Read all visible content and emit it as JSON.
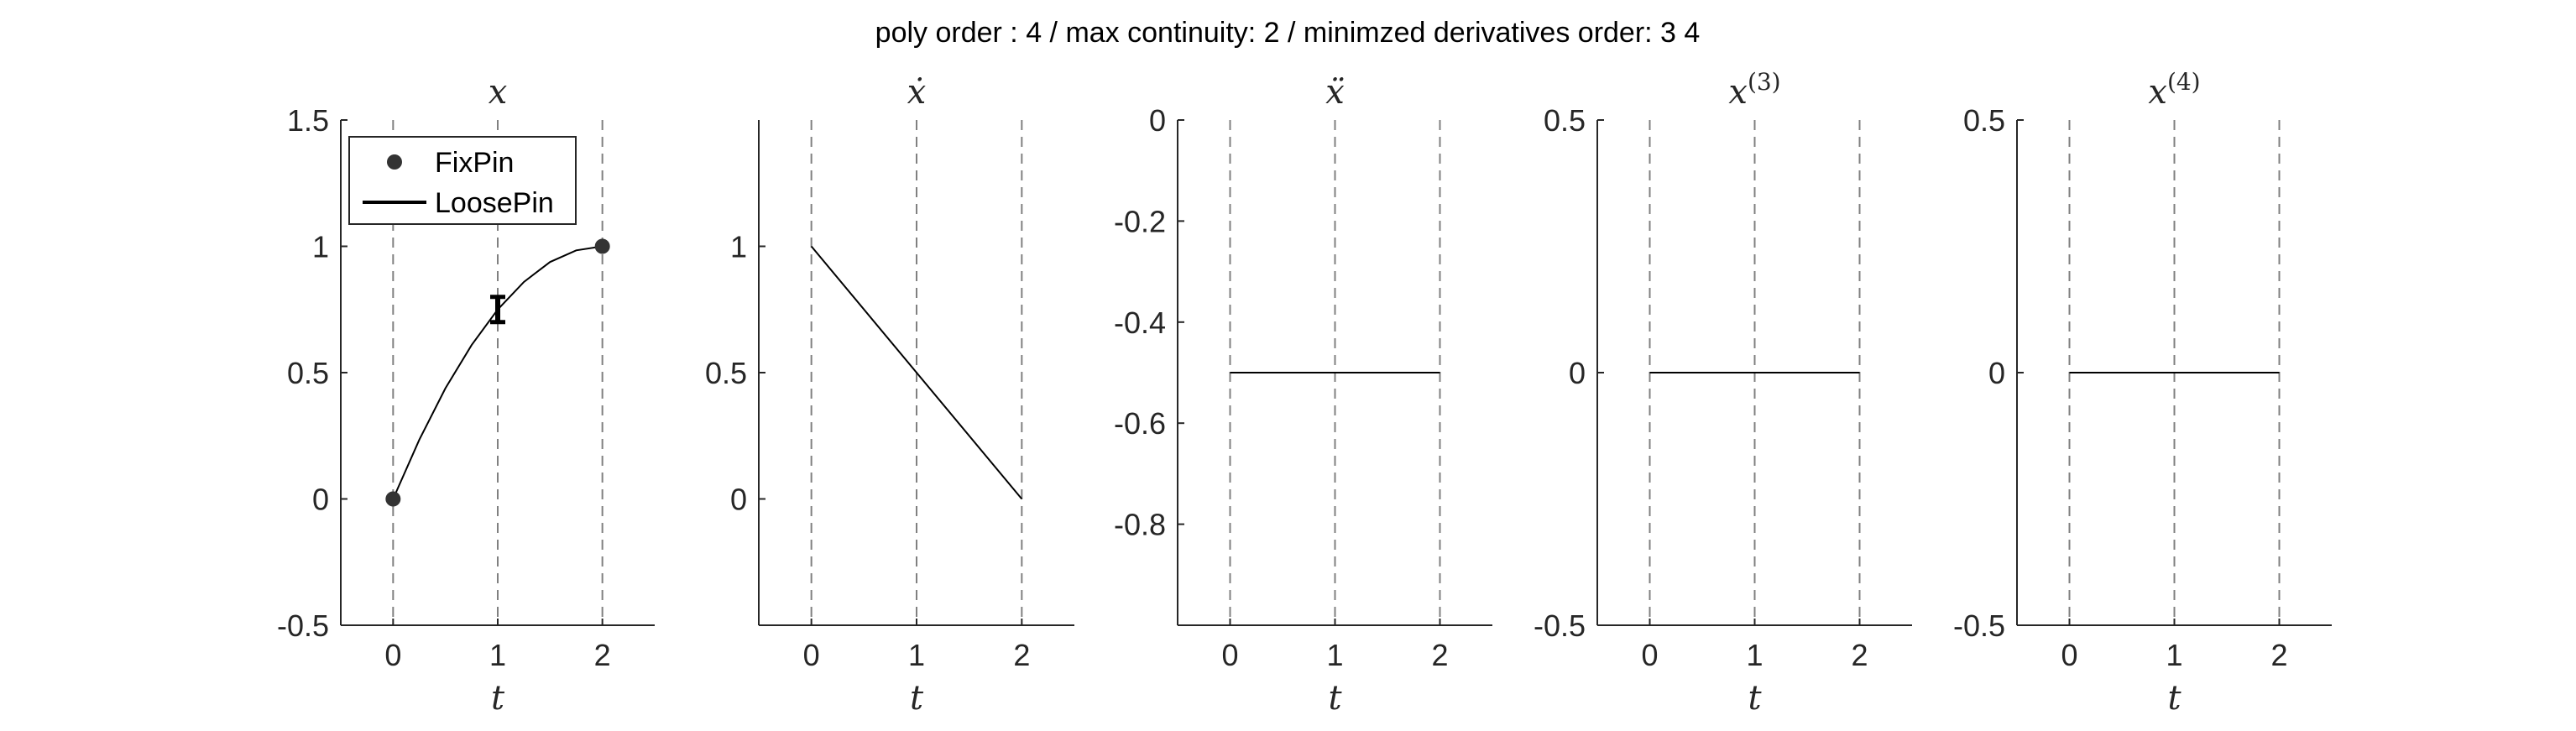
{
  "figure_title": "poly order : 4 / max continuity: 2 / minimzed derivatives order: 3  4",
  "colors": {
    "axis": "#262626",
    "curve": "#000000",
    "guide": "#808080",
    "marker": "#333333"
  },
  "chart_data": [
    {
      "type": "line",
      "title": "x",
      "xlabel": "t",
      "xlim": [
        -0.5,
        2.5
      ],
      "ylim": [
        -0.5,
        1.5
      ],
      "xticks": [
        0,
        1,
        2
      ],
      "xtick_labels": [
        "0",
        "1",
        "2"
      ],
      "yticks": [
        -0.5,
        0,
        0.5,
        1,
        1.5
      ],
      "ytick_labels": [
        "-0.5",
        "0",
        "0.5",
        "1",
        "1.5"
      ],
      "guide_lines_x": [
        0,
        1,
        2
      ],
      "series": [
        {
          "kind": "curve",
          "x": [
            0,
            0.25,
            0.5,
            0.75,
            1,
            1.25,
            1.5,
            1.75,
            2
          ],
          "y": [
            0,
            0.234,
            0.438,
            0.609,
            0.75,
            0.859,
            0.938,
            0.984,
            1
          ]
        }
      ],
      "fix_pins": {
        "x": [
          0,
          2
        ],
        "y": [
          0,
          1
        ]
      },
      "loose_pins": [
        {
          "x": 1,
          "y_low": 0.7,
          "y_high": 0.8
        }
      ],
      "legend": {
        "location": "top-left",
        "entries": [
          "FixPin",
          "LoosePin"
        ]
      }
    },
    {
      "type": "line",
      "title": "ẋ",
      "xlabel": "t",
      "xlim": [
        -0.5,
        2.5
      ],
      "ylim": [
        -0.5,
        1.5
      ],
      "xticks": [
        0,
        1,
        2
      ],
      "xtick_labels": [
        "0",
        "1",
        "2"
      ],
      "yticks": [
        0,
        0.5,
        1
      ],
      "ytick_labels": [
        "0",
        "0.5",
        "1"
      ],
      "guide_lines_x": [
        0,
        1,
        2
      ],
      "series": [
        {
          "kind": "curve",
          "x": [
            0,
            2
          ],
          "y": [
            1,
            0
          ]
        }
      ]
    },
    {
      "type": "line",
      "title": "ẍ",
      "xlabel": "t",
      "xlim": [
        -0.5,
        2.5
      ],
      "ylim": [
        -1,
        0
      ],
      "xticks": [
        0,
        1,
        2
      ],
      "xtick_labels": [
        "0",
        "1",
        "2"
      ],
      "yticks": [
        -0.8,
        -0.6,
        -0.4,
        -0.2,
        0
      ],
      "ytick_labels": [
        "-0.8",
        "-0.6",
        "-0.4",
        "-0.2",
        "0"
      ],
      "guide_lines_x": [
        0,
        1,
        2
      ],
      "series": [
        {
          "kind": "curve",
          "x": [
            0,
            2
          ],
          "y": [
            -0.5,
            -0.5
          ]
        }
      ]
    },
    {
      "type": "line",
      "title": "x",
      "title_superscript": "(3)",
      "xlabel": "t",
      "xlim": [
        -0.5,
        2.5
      ],
      "ylim": [
        -0.5,
        0.5
      ],
      "xticks": [
        0,
        1,
        2
      ],
      "xtick_labels": [
        "0",
        "1",
        "2"
      ],
      "yticks": [
        -0.5,
        0,
        0.5
      ],
      "ytick_labels": [
        "-0.5",
        "0",
        "0.5"
      ],
      "guide_lines_x": [
        0,
        1,
        2
      ],
      "series": [
        {
          "kind": "curve",
          "x": [
            0,
            2
          ],
          "y": [
            0,
            0
          ]
        }
      ]
    },
    {
      "type": "line",
      "title": "x",
      "title_superscript": "(4)",
      "xlabel": "t",
      "xlim": [
        -0.5,
        2.5
      ],
      "ylim": [
        -0.5,
        0.5
      ],
      "xticks": [
        0,
        1,
        2
      ],
      "xtick_labels": [
        "0",
        "1",
        "2"
      ],
      "yticks": [
        -0.5,
        0,
        0.5
      ],
      "ytick_labels": [
        "-0.5",
        "0",
        "0.5"
      ],
      "guide_lines_x": [
        0,
        1,
        2
      ],
      "series": [
        {
          "kind": "curve",
          "x": [
            0,
            2
          ],
          "y": [
            0,
            0
          ]
        }
      ]
    }
  ]
}
